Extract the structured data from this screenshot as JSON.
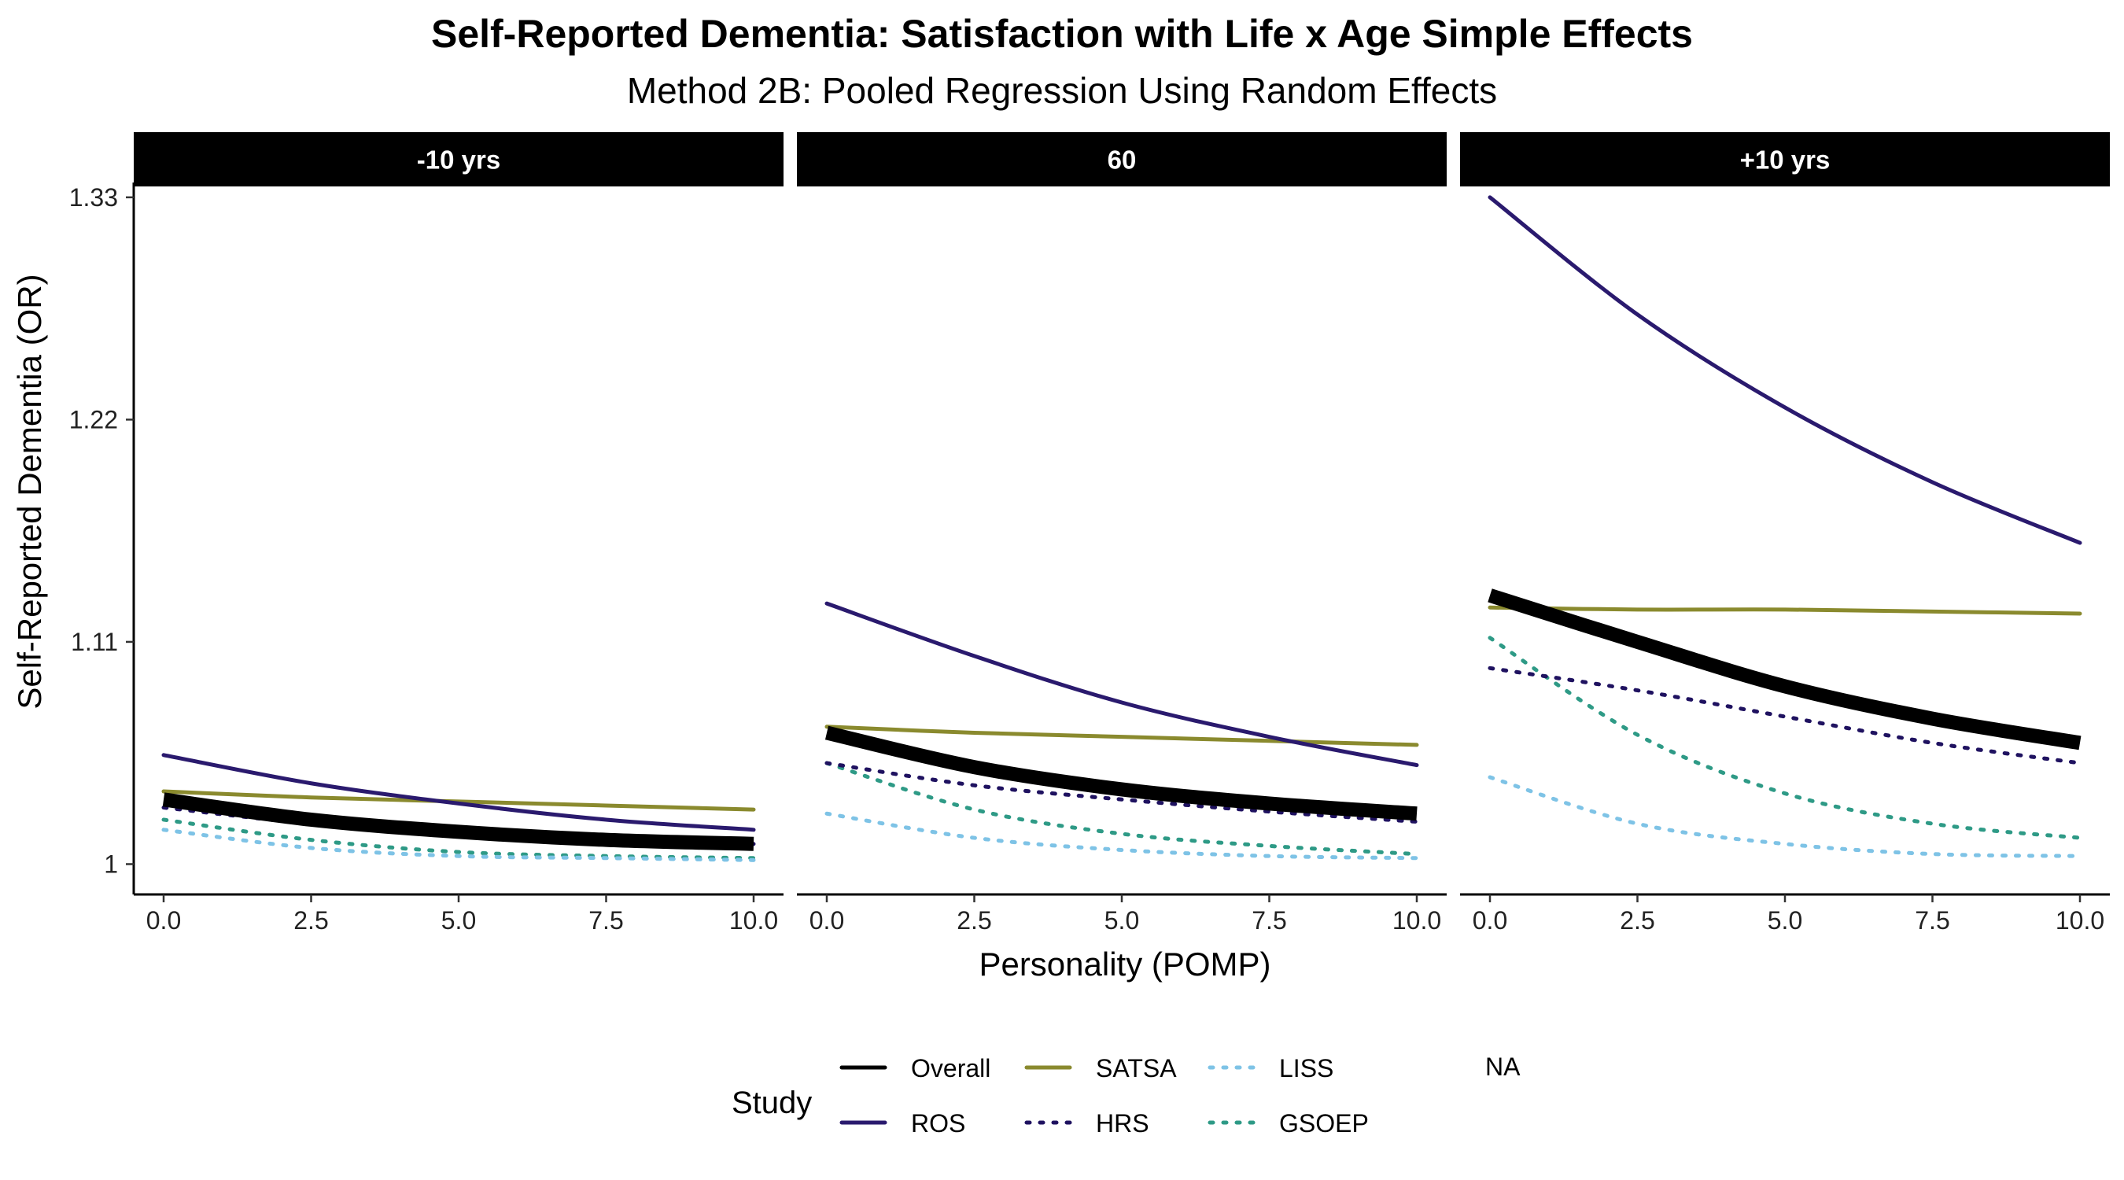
{
  "chart_data": {
    "type": "line",
    "title": "Self-Reported Dementia: Satisfaction with Life x Age Simple Effects",
    "subtitle": "Method 2B: Pooled Regression Using Random Effects",
    "xlabel": "Personality (POMP)",
    "ylabel": "Self-Reported Dementia (OR)",
    "xlim": [
      0,
      10
    ],
    "ylim": [
      0.985,
      1.335
    ],
    "x_ticks": [
      0,
      2.5,
      5,
      7.5,
      10
    ],
    "x_tick_labels": [
      "0.0",
      "2.5",
      "5.0",
      "7.5",
      "10.0"
    ],
    "y_ticks": [
      1,
      1.11,
      1.22,
      1.33
    ],
    "y_tick_labels": [
      "1",
      "1.11",
      "1.22",
      "1.33"
    ],
    "grid": false,
    "legend_position": "bottom",
    "legend_title": "Study",
    "legend_na_label": "NA",
    "x": [
      0,
      2.5,
      5,
      7.5,
      10
    ],
    "series_styles": [
      {
        "name": "Overall",
        "color": "#000000",
        "dash": "solid",
        "weight": "thick"
      },
      {
        "name": "ROS",
        "color": "#2a1a6e",
        "dash": "solid",
        "weight": "normal"
      },
      {
        "name": "SATSA",
        "color": "#8a8a2e",
        "dash": "solid",
        "weight": "normal"
      },
      {
        "name": "HRS",
        "color": "#1f1260",
        "dash": "dotted",
        "weight": "normal"
      },
      {
        "name": "LISS",
        "color": "#7ec3e6",
        "dash": "dotted",
        "weight": "normal"
      },
      {
        "name": "GSOEP",
        "color": "#2e9a86",
        "dash": "dotted",
        "weight": "normal"
      }
    ],
    "facets": [
      {
        "label": "-10 yrs",
        "series": [
          {
            "name": "Overall",
            "values": [
              1.032,
              1.022,
              1.016,
              1.012,
              1.01
            ]
          },
          {
            "name": "ROS",
            "values": [
              1.054,
              1.04,
              1.03,
              1.022,
              1.017
            ]
          },
          {
            "name": "SATSA",
            "values": [
              1.036,
              1.033,
              1.031,
              1.029,
              1.027
            ]
          },
          {
            "name": "HRS",
            "values": [
              1.028,
              1.02,
              1.015,
              1.012,
              1.01
            ]
          },
          {
            "name": "LISS",
            "values": [
              1.017,
              1.008,
              1.004,
              1.003,
              1.002
            ]
          },
          {
            "name": "GSOEP",
            "values": [
              1.022,
              1.012,
              1.006,
              1.004,
              1.003
            ]
          }
        ]
      },
      {
        "label": "60",
        "series": [
          {
            "name": "Overall",
            "values": [
              1.065,
              1.048,
              1.037,
              1.03,
              1.025
            ]
          },
          {
            "name": "ROS",
            "values": [
              1.129,
              1.103,
              1.08,
              1.063,
              1.049
            ]
          },
          {
            "name": "SATSA",
            "values": [
              1.068,
              1.065,
              1.063,
              1.061,
              1.059
            ]
          },
          {
            "name": "HRS",
            "values": [
              1.05,
              1.039,
              1.032,
              1.026,
              1.021
            ]
          },
          {
            "name": "LISS",
            "values": [
              1.025,
              1.013,
              1.007,
              1.004,
              1.003
            ]
          },
          {
            "name": "GSOEP",
            "values": [
              1.05,
              1.027,
              1.015,
              1.009,
              1.005
            ]
          }
        ]
      },
      {
        "label": "+10 yrs",
        "series": [
          {
            "name": "Overall",
            "values": [
              1.133,
              1.11,
              1.088,
              1.072,
              1.06
            ]
          },
          {
            "name": "ROS",
            "values": [
              1.33,
              1.272,
              1.226,
              1.189,
              1.159
            ]
          },
          {
            "name": "SATSA",
            "values": [
              1.127,
              1.126,
              1.126,
              1.125,
              1.124
            ]
          },
          {
            "name": "HRS",
            "values": [
              1.097,
              1.086,
              1.073,
              1.06,
              1.05
            ]
          },
          {
            "name": "LISS",
            "values": [
              1.043,
              1.02,
              1.01,
              1.005,
              1.004
            ]
          },
          {
            "name": "GSOEP",
            "values": [
              1.112,
              1.064,
              1.035,
              1.02,
              1.013
            ]
          }
        ]
      }
    ]
  }
}
